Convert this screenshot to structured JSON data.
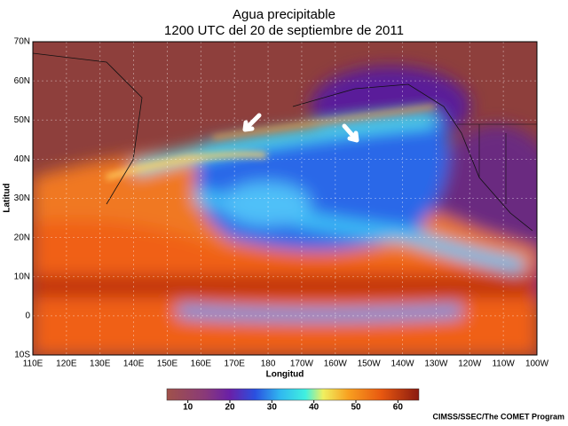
{
  "title": [
    "Agua precipitable",
    "1200 UTC del 20 de septiembre de 2011"
  ],
  "map": {
    "ylabel": "Latitud",
    "xlabel": "Longitud",
    "lat_labels": [
      "70N",
      "60N",
      "50N",
      "40N",
      "30N",
      "20N",
      "10N",
      "0",
      "10S"
    ],
    "lon_labels": [
      "110E",
      "120E",
      "130E",
      "140E",
      "150E",
      "160E",
      "170E",
      "180",
      "170W",
      "160W",
      "150W",
      "140W",
      "130W",
      "120W",
      "110W",
      "100W"
    ]
  },
  "colorbar": {
    "range": [
      5,
      65
    ],
    "ticks": [
      10,
      20,
      30,
      40,
      50,
      60
    ]
  },
  "credit": "CIMSS/SSEC/The COMET Program"
}
